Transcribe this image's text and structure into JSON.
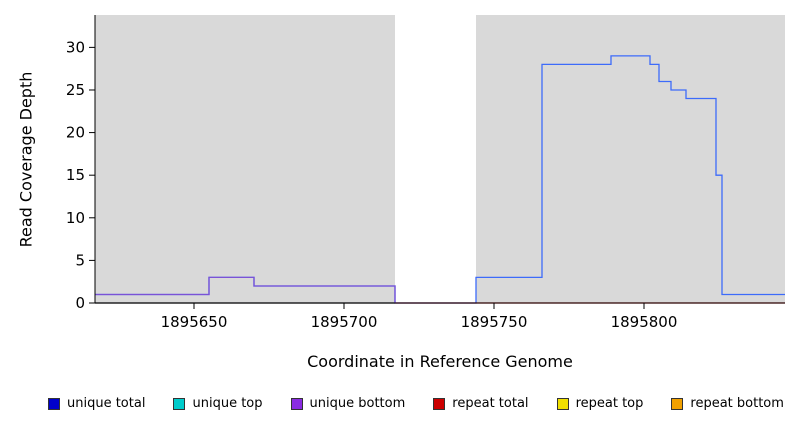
{
  "chart_data": {
    "type": "line",
    "title": "",
    "xlabel": "Coordinate in Reference Genome",
    "ylabel": "Read Coverage Depth",
    "xlim": [
      1895617,
      1895847
    ],
    "ylim": [
      0,
      33.8
    ],
    "x_ticks": [
      1895650,
      1895700,
      1895750,
      1895800
    ],
    "y_ticks": [
      0,
      5,
      10,
      15,
      20,
      25,
      30
    ],
    "grid": false,
    "plot_bg": "#d9d9d9",
    "gap_region": {
      "x0": 1895717,
      "x1": 1895744,
      "color": "#ffffff"
    },
    "series": [
      {
        "name": "unique total",
        "color": "#3d6bfa",
        "step": true,
        "points": [
          [
            1895617,
            1
          ],
          [
            1895655,
            1
          ],
          [
            1895655,
            3
          ],
          [
            1895670,
            3
          ],
          [
            1895670,
            2
          ],
          [
            1895717,
            2
          ],
          [
            1895717,
            0
          ],
          [
            1895744,
            0
          ],
          [
            1895744,
            3
          ],
          [
            1895766,
            3
          ],
          [
            1895766,
            28
          ],
          [
            1895789,
            28
          ],
          [
            1895789,
            29
          ],
          [
            1895802,
            29
          ],
          [
            1895802,
            28
          ],
          [
            1895805,
            28
          ],
          [
            1895805,
            26
          ],
          [
            1895809,
            26
          ],
          [
            1895809,
            25
          ],
          [
            1895814,
            25
          ],
          [
            1895814,
            24
          ],
          [
            1895824,
            24
          ],
          [
            1895824,
            15
          ],
          [
            1895826,
            15
          ],
          [
            1895826,
            1
          ],
          [
            1895847,
            1
          ]
        ]
      },
      {
        "name": "repeat total",
        "color": "#d40000",
        "step": true,
        "points": [
          [
            1895617,
            0
          ],
          [
            1895847,
            0
          ]
        ]
      },
      {
        "name": "unique top",
        "color": "#00a0a8",
        "step": true,
        "points": [
          [
            1895617,
            0
          ],
          [
            1895717,
            0
          ]
        ]
      },
      {
        "name": "unique bottom",
        "color": "#7b52d6",
        "step": true,
        "points": [
          [
            1895617,
            1
          ],
          [
            1895655,
            1
          ],
          [
            1895655,
            3
          ],
          [
            1895670,
            3
          ],
          [
            1895670,
            2
          ],
          [
            1895717,
            2
          ],
          [
            1895717,
            0
          ]
        ]
      },
      {
        "name": "repeat top",
        "color": "#f0e000",
        "step": true,
        "points": []
      },
      {
        "name": "repeat bottom",
        "color": "#f0a000",
        "step": true,
        "points": []
      }
    ]
  },
  "legend": {
    "items": [
      {
        "label": "unique total",
        "color": "#0000cc"
      },
      {
        "label": "unique top",
        "color": "#00cccc"
      },
      {
        "label": "unique bottom",
        "color": "#8a2be2"
      },
      {
        "label": "repeat total",
        "color": "#cc0000"
      },
      {
        "label": "repeat top",
        "color": "#f0e000"
      },
      {
        "label": "repeat bottom",
        "color": "#f0a000"
      }
    ]
  }
}
